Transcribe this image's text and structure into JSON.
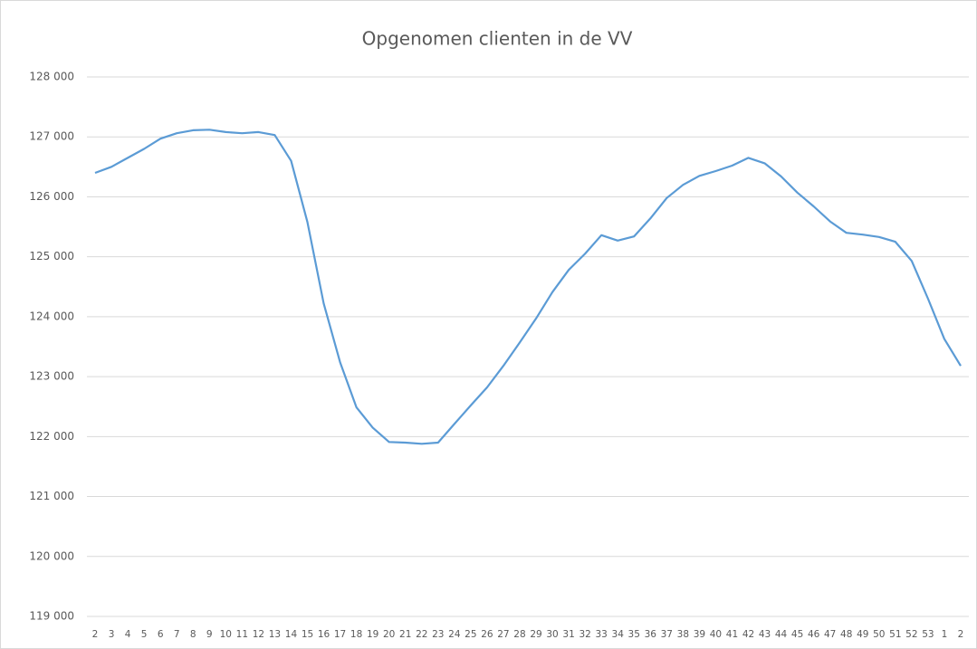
{
  "chart_data": {
    "type": "line",
    "title": "Opgenomen clienten in de VV",
    "categories": [
      "2",
      "3",
      "4",
      "5",
      "6",
      "7",
      "8",
      "9",
      "10",
      "11",
      "12",
      "13",
      "14",
      "15",
      "16",
      "17",
      "18",
      "19",
      "20",
      "21",
      "22",
      "23",
      "24",
      "25",
      "26",
      "27",
      "28",
      "29",
      "30",
      "31",
      "32",
      "33",
      "34",
      "35",
      "36",
      "37",
      "38",
      "39",
      "40",
      "41",
      "42",
      "43",
      "44",
      "45",
      "46",
      "47",
      "48",
      "49",
      "50",
      "51",
      "52",
      "53",
      "1",
      "2"
    ],
    "series": [
      {
        "name": "Opgenomen clienten",
        "color": "#5b9bd5",
        "values": [
          126400,
          126500,
          126650,
          126800,
          126970,
          127060,
          127110,
          127120,
          127080,
          127060,
          127080,
          127030,
          126600,
          125580,
          124220,
          123240,
          122490,
          122150,
          121910,
          121900,
          121880,
          121900,
          122210,
          122520,
          122820,
          123180,
          123570,
          123970,
          124410,
          124780,
          125050,
          125360,
          125270,
          125340,
          125640,
          125980,
          126200,
          126350,
          126430,
          126520,
          126650,
          126560,
          126340,
          126070,
          125840,
          125590,
          125400,
          125370,
          125330,
          125250,
          124930,
          124300,
          123630,
          123180
        ]
      }
    ],
    "ylim": [
      119000,
      128000
    ],
    "yticks": [
      {
        "value": 119000,
        "label": "119 000"
      },
      {
        "value": 120000,
        "label": "120 000"
      },
      {
        "value": 121000,
        "label": "121 000"
      },
      {
        "value": 122000,
        "label": "122 000"
      },
      {
        "value": 123000,
        "label": "123 000"
      },
      {
        "value": 124000,
        "label": "124 000"
      },
      {
        "value": 125000,
        "label": "125 000"
      },
      {
        "value": 126000,
        "label": "126 000"
      },
      {
        "value": 127000,
        "label": "127 000"
      },
      {
        "value": 128000,
        "label": "128 000"
      }
    ],
    "grid": true
  }
}
